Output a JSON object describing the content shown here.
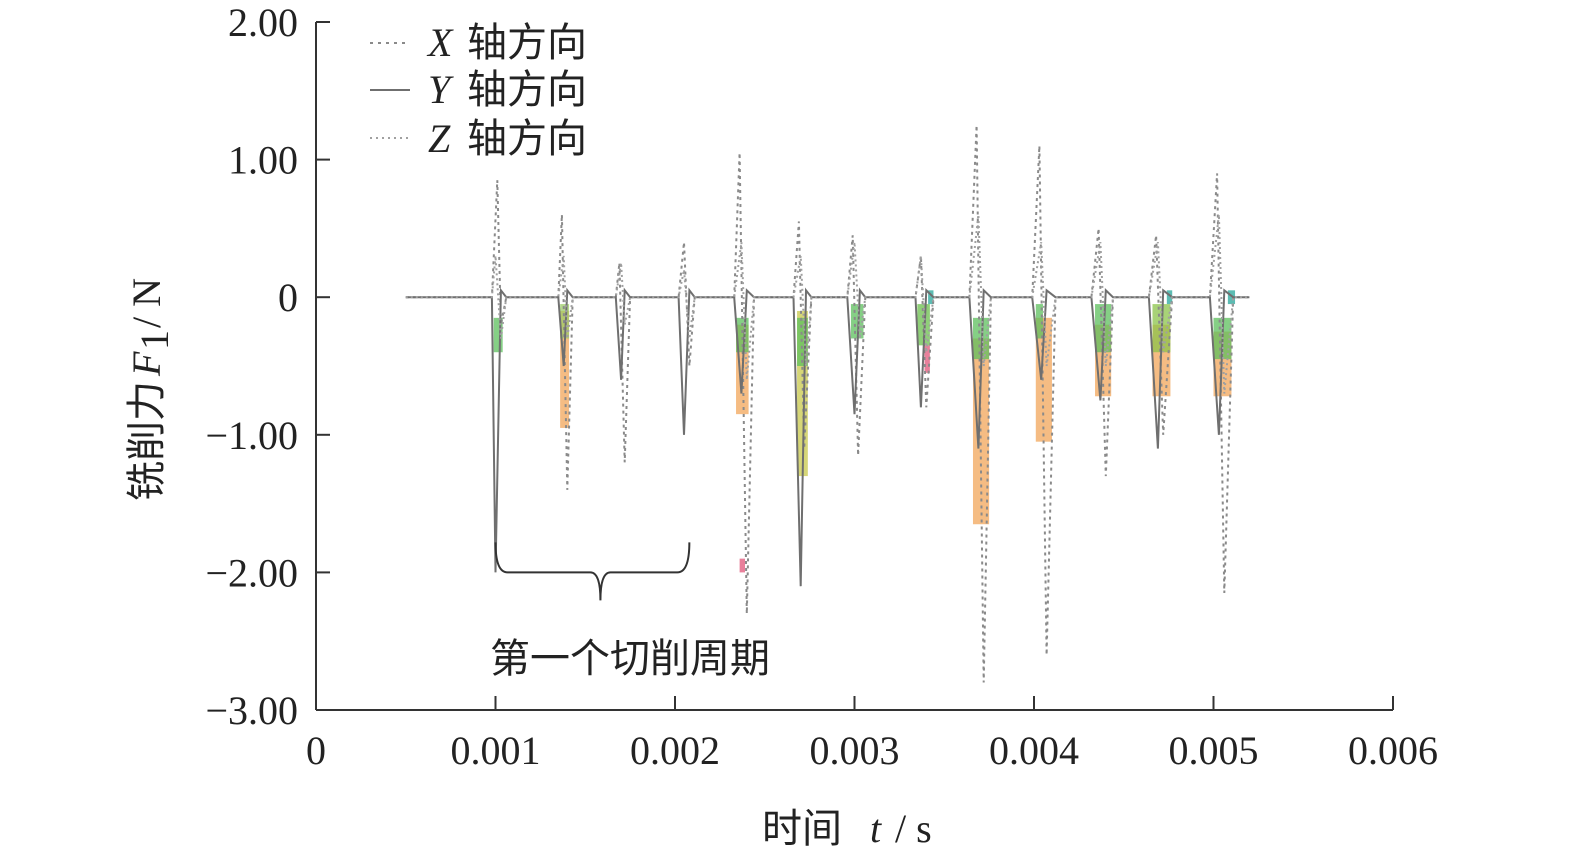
{
  "chart_data": {
    "type": "line",
    "title": "",
    "xlabel": {
      "prefix": "时间",
      "var": "t",
      "unit": "/ s"
    },
    "ylabel": {
      "prefix": "铣削力",
      "var": "F",
      "sub": "1",
      "unit": "/ N"
    },
    "xlim": [
      0,
      0.006
    ],
    "ylim": [
      -3.0,
      2.0
    ],
    "x_ticks": [
      0,
      0.001,
      0.002,
      0.003,
      0.004,
      0.005,
      0.006
    ],
    "x_tick_labels": [
      "0",
      "0.001",
      "0.002",
      "0.003",
      "0.004",
      "0.005",
      "0.006"
    ],
    "y_ticks": [
      2.0,
      1.0,
      0,
      -1.0,
      -2.0,
      -3.0
    ],
    "y_tick_labels": [
      "2.00",
      "1.00",
      "0",
      "−1.00",
      "−2.00",
      "−3.00"
    ],
    "grid": false,
    "legend_position": "top-left",
    "legend": [
      {
        "var": "X",
        "text": "轴方向",
        "style": "dotted"
      },
      {
        "var": "Y",
        "text": "轴方向",
        "style": "solid"
      },
      {
        "var": "Z",
        "text": "轴方向",
        "style": "dotted"
      }
    ],
    "annotation": {
      "text": "第一个切削周期",
      "bracket_from": 0.001,
      "bracket_to": 0.00208,
      "bracket_y": -2.0
    },
    "series": [
      {
        "name": "X轴方向",
        "style": "dotted",
        "color": "#8a8a8a",
        "x": [
          0.0005,
          0.00098,
          0.00101,
          0.00103,
          0.00106,
          0.00135,
          0.00137,
          0.0014,
          0.00143,
          0.00167,
          0.00169,
          0.00172,
          0.00175,
          0.00202,
          0.00205,
          0.00208,
          0.00211,
          0.00233,
          0.00236,
          0.0024,
          0.00244,
          0.00266,
          0.00269,
          0.00272,
          0.00276,
          0.00296,
          0.00299,
          0.00302,
          0.00306,
          0.00334,
          0.00337,
          0.0034,
          0.00344,
          0.00364,
          0.00368,
          0.00372,
          0.00376,
          0.00399,
          0.00403,
          0.00407,
          0.00412,
          0.00432,
          0.00436,
          0.0044,
          0.00444,
          0.00464,
          0.00468,
          0.00472,
          0.00477,
          0.00498,
          0.00502,
          0.00506,
          0.00511,
          0.0052
        ],
        "y": [
          0,
          0,
          0.85,
          -0.2,
          0,
          0,
          0.6,
          -1.4,
          0,
          0,
          0.25,
          -1.2,
          0,
          0,
          0.4,
          -0.5,
          0,
          0,
          1.05,
          -2.3,
          0,
          0,
          0.55,
          -1.1,
          0,
          0,
          0.45,
          -1.15,
          0,
          0,
          0.3,
          -0.8,
          0,
          0,
          1.25,
          -2.8,
          0,
          0,
          1.1,
          -2.6,
          0,
          0,
          0.5,
          -1.3,
          0,
          0,
          0.45,
          -1.0,
          0,
          0,
          0.9,
          -2.15,
          0,
          0
        ]
      },
      {
        "name": "Y轴方向",
        "style": "solid",
        "color": "#6f6f6f",
        "x": [
          0.0005,
          0.00098,
          0.001,
          0.00103,
          0.00106,
          0.00135,
          0.00138,
          0.0014,
          0.00143,
          0.00167,
          0.0017,
          0.00172,
          0.00175,
          0.00202,
          0.00205,
          0.00208,
          0.00211,
          0.00233,
          0.00237,
          0.0024,
          0.00244,
          0.00266,
          0.0027,
          0.00273,
          0.00276,
          0.00296,
          0.003,
          0.00303,
          0.00306,
          0.00334,
          0.00337,
          0.0034,
          0.00344,
          0.00364,
          0.00369,
          0.00372,
          0.00376,
          0.00399,
          0.00404,
          0.00407,
          0.00412,
          0.00432,
          0.00437,
          0.0044,
          0.00444,
          0.00464,
          0.00469,
          0.00472,
          0.00477,
          0.00498,
          0.00503,
          0.00506,
          0.00511,
          0.0052
        ],
        "y": [
          0,
          0,
          -2.0,
          0.05,
          0,
          0,
          -0.5,
          0.05,
          0,
          0,
          -0.6,
          0.05,
          0,
          0,
          -1.0,
          0.05,
          0,
          0,
          -0.7,
          0.05,
          0,
          0,
          -2.1,
          0.05,
          0,
          0,
          -0.85,
          0.05,
          0,
          0,
          -0.8,
          0.05,
          0,
          0,
          -1.1,
          0.05,
          0,
          0,
          -0.6,
          0.05,
          0,
          0,
          -0.75,
          0.05,
          0,
          0,
          -1.1,
          0.05,
          0,
          0,
          -1.0,
          0.05,
          0,
          0
        ]
      },
      {
        "name": "Z轴方向",
        "style": "dotted",
        "color": "#a0a0a0",
        "x": [
          0.0005,
          0.00098,
          0.001,
          0.00103,
          0.00106,
          0.00135,
          0.00138,
          0.0014,
          0.00143,
          0.00167,
          0.0017,
          0.00172,
          0.00175,
          0.00202,
          0.00205,
          0.00208,
          0.00211,
          0.00233,
          0.00237,
          0.0024,
          0.00244,
          0.00266,
          0.0027,
          0.00273,
          0.00276,
          0.00296,
          0.003,
          0.00303,
          0.00306,
          0.00334,
          0.00337,
          0.0034,
          0.00344,
          0.00364,
          0.00369,
          0.00372,
          0.00376,
          0.00399,
          0.00404,
          0.00407,
          0.00412,
          0.00432,
          0.00437,
          0.0044,
          0.00444,
          0.00464,
          0.00469,
          0.00472,
          0.00477,
          0.00498,
          0.00503,
          0.00506,
          0.00511,
          0.0052
        ],
        "y": [
          0,
          0,
          0.3,
          -0.3,
          0,
          0,
          0.3,
          -0.3,
          0,
          0,
          0.25,
          -0.2,
          0,
          0,
          0.2,
          -0.3,
          0,
          0,
          0.4,
          -0.6,
          0,
          0,
          0.3,
          -0.5,
          0,
          0,
          0.4,
          -0.3,
          0,
          0,
          0.3,
          -0.4,
          0,
          0,
          0.6,
          -0.5,
          0,
          0,
          0.4,
          -0.5,
          0,
          0,
          0.4,
          -0.5,
          0,
          0,
          0.4,
          -0.4,
          0,
          0,
          0.6,
          -0.7,
          0,
          0
        ]
      }
    ],
    "highlight_bands": [
      {
        "x_from": 0.00099,
        "x_to": 0.00104,
        "y_from": -0.4,
        "y_to": -0.15,
        "color": "#5cbf5c"
      },
      {
        "x_from": 0.00136,
        "x_to": 0.00141,
        "y_from": -0.95,
        "y_to": -0.1,
        "color": "#f2a65a"
      },
      {
        "x_from": 0.00136,
        "x_to": 0.00141,
        "y_from": -0.3,
        "y_to": -0.05,
        "color": "#9ccc65"
      },
      {
        "x_from": 0.00234,
        "x_to": 0.00241,
        "y_from": -0.85,
        "y_to": -0.2,
        "color": "#f2a65a"
      },
      {
        "x_from": 0.00234,
        "x_to": 0.00241,
        "y_from": -0.4,
        "y_to": -0.15,
        "color": "#5cbf5c"
      },
      {
        "x_from": 0.00236,
        "x_to": 0.00239,
        "y_from": -2.0,
        "y_to": -1.9,
        "color": "#e0557a"
      },
      {
        "x_from": 0.00268,
        "x_to": 0.00274,
        "y_from": -1.3,
        "y_to": -0.1,
        "color": "#c8c84a"
      },
      {
        "x_from": 0.00268,
        "x_to": 0.00274,
        "y_from": -0.5,
        "y_to": -0.15,
        "color": "#5cbf5c"
      },
      {
        "x_from": 0.00298,
        "x_to": 0.00305,
        "y_from": -0.3,
        "y_to": -0.05,
        "color": "#5cbf5c"
      },
      {
        "x_from": 0.00335,
        "x_to": 0.00342,
        "y_from": -0.35,
        "y_to": -0.05,
        "color": "#6abf4b"
      },
      {
        "x_from": 0.00339,
        "x_to": 0.00342,
        "y_from": -0.55,
        "y_to": -0.35,
        "color": "#e0557a"
      },
      {
        "x_from": 0.00341,
        "x_to": 0.00344,
        "y_from": 0.05,
        "y_to": -0.05,
        "color": "#26a69a"
      },
      {
        "x_from": 0.00366,
        "x_to": 0.00375,
        "y_from": -1.65,
        "y_to": -0.3,
        "color": "#f2a65a"
      },
      {
        "x_from": 0.00366,
        "x_to": 0.00375,
        "y_from": -0.45,
        "y_to": -0.15,
        "color": "#5cbf5c"
      },
      {
        "x_from": 0.00401,
        "x_to": 0.0041,
        "y_from": -1.05,
        "y_to": -0.15,
        "color": "#f2a65a"
      },
      {
        "x_from": 0.00401,
        "x_to": 0.00405,
        "y_from": -0.3,
        "y_to": -0.05,
        "color": "#5cbf5c"
      },
      {
        "x_from": 0.00434,
        "x_to": 0.00443,
        "y_from": -0.72,
        "y_to": -0.2,
        "color": "#f2a65a"
      },
      {
        "x_from": 0.00434,
        "x_to": 0.00443,
        "y_from": -0.4,
        "y_to": -0.05,
        "color": "#5cbf5c"
      },
      {
        "x_from": 0.00466,
        "x_to": 0.00476,
        "y_from": -0.72,
        "y_to": -0.2,
        "color": "#f2a65a"
      },
      {
        "x_from": 0.00466,
        "x_to": 0.00476,
        "y_from": -0.4,
        "y_to": -0.05,
        "color": "#8bc34a"
      },
      {
        "x_from": 0.00474,
        "x_to": 0.00477,
        "y_from": 0.05,
        "y_to": -0.05,
        "color": "#26a69a"
      },
      {
        "x_from": 0.005,
        "x_to": 0.0051,
        "y_from": -0.72,
        "y_to": -0.25,
        "color": "#f2a65a"
      },
      {
        "x_from": 0.005,
        "x_to": 0.0051,
        "y_from": -0.45,
        "y_to": -0.15,
        "color": "#5cbf5c"
      },
      {
        "x_from": 0.00508,
        "x_to": 0.00512,
        "y_from": 0.05,
        "y_to": -0.05,
        "color": "#26a69a"
      }
    ]
  }
}
